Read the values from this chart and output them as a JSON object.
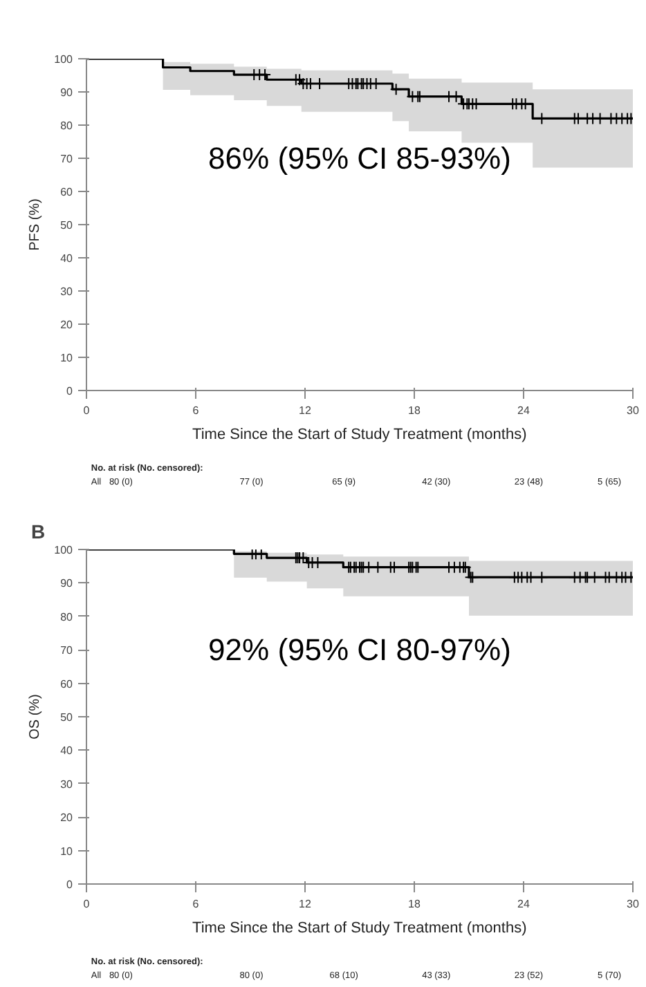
{
  "chart_data": [
    {
      "type": "step",
      "ylabel": "PFS (%)",
      "xlabel": "Time Since the Start of Study Treatment (months)",
      "xlim": [
        0,
        30
      ],
      "ylim": [
        0,
        100
      ],
      "xticks": [
        0,
        6,
        12,
        18,
        24,
        30
      ],
      "yticks": [
        0,
        10,
        20,
        30,
        40,
        50,
        60,
        70,
        80,
        90,
        100
      ],
      "series": [
        {
          "color": "#000000",
          "x": [
            0,
            4.2,
            5.7,
            8.1,
            9.9,
            11.8,
            16.8,
            17.7,
            20.6,
            24.5,
            30
          ],
          "values": [
            100,
            97.4,
            96.3,
            95.2,
            93.7,
            92.5,
            90.8,
            88.6,
            86.4,
            82,
            82
          ],
          "lower": [
            null,
            90.6,
            89,
            87.5,
            85.8,
            84,
            81.2,
            78.1,
            74.7,
            67.2,
            67.2
          ],
          "upper": [
            null,
            99,
            98.5,
            97.6,
            97,
            96.5,
            95.5,
            94,
            92.8,
            90.8,
            90.8
          ]
        },
        {
          "type": "scatter",
          "marker": "cross",
          "color": "#000000",
          "x": [
            9.2,
            9.5,
            9.8,
            11.5,
            11.7,
            11.9,
            12.1,
            12.3,
            12.8,
            14.4,
            14.6,
            14.8,
            14.9,
            15.1,
            15.2,
            15.4,
            15.6,
            15.9,
            17.0,
            17.9,
            18.2,
            18.3,
            19.9,
            20.3,
            20.7,
            20.9,
            21.0,
            21.2,
            21.4,
            23.4,
            23.6,
            23.9,
            24.1,
            25.0,
            26.8,
            27.0,
            27.5,
            27.8,
            28.2,
            28.8,
            29.1,
            29.4,
            29.7,
            29.9
          ],
          "values": [
            95.2,
            95.2,
            95.2,
            93.7,
            93.7,
            92.5,
            92.5,
            92.5,
            92.5,
            92.5,
            92.5,
            92.5,
            92.5,
            92.5,
            92.5,
            92.5,
            92.5,
            92.5,
            90.8,
            88.6,
            88.6,
            88.6,
            88.6,
            88.6,
            86.4,
            86.4,
            86.4,
            86.4,
            86.4,
            86.4,
            86.4,
            86.4,
            86.4,
            82,
            82,
            82,
            82,
            82,
            82,
            82,
            82,
            82,
            82,
            82
          ]
        }
      ],
      "annotations": [
        "86% (95% CI 85-93%)",
        "No. at risk (No. censored):",
        "All",
        "80 (0)",
        "77 (0)",
        "65 (9)",
        "42 (30)",
        "23 (48)",
        "5 (65)"
      ]
    },
    {
      "type": "step",
      "title": "B",
      "ylabel": "OS (%)",
      "xlabel": "Time Since the Start of Study Treatment (months)",
      "xlim": [
        0,
        30
      ],
      "ylim": [
        0,
        100
      ],
      "xticks": [
        0,
        6,
        12,
        18,
        24,
        30
      ],
      "yticks": [
        0,
        10,
        20,
        30,
        40,
        50,
        60,
        70,
        80,
        90,
        100
      ],
      "series": [
        {
          "color": "#000000",
          "x": [
            0,
            8.1,
            9.9,
            12.1,
            14.1,
            21.0,
            30
          ],
          "values": [
            100,
            98.7,
            97.5,
            96.1,
            94.7,
            91.7,
            91.7
          ],
          "lower": [
            null,
            91.6,
            90.4,
            88.4,
            86,
            80.2,
            80.2
          ],
          "upper": [
            null,
            99.5,
            99,
            98.5,
            97.9,
            96.6,
            96.6
          ]
        },
        {
          "type": "scatter",
          "marker": "cross",
          "color": "#000000",
          "x": [
            9.1,
            9.3,
            9.6,
            11.5,
            11.6,
            11.7,
            11.9,
            12.2,
            12.4,
            12.7,
            14.4,
            14.5,
            14.7,
            14.8,
            15.0,
            15.1,
            15.2,
            15.5,
            16.0,
            16.7,
            16.9,
            17.7,
            17.8,
            17.9,
            18.1,
            18.2,
            19.9,
            20.2,
            20.5,
            20.7,
            20.8,
            21.1,
            21.2,
            23.5,
            23.7,
            23.9,
            24.2,
            24.4,
            25.0,
            26.8,
            27.1,
            27.4,
            27.5,
            27.9,
            28.5,
            28.7,
            29.1,
            29.4,
            29.6,
            29.9
          ],
          "values": [
            98.7,
            98.7,
            98.7,
            97.5,
            97.5,
            97.5,
            97.5,
            96.1,
            96.1,
            96.1,
            94.7,
            94.7,
            94.7,
            94.7,
            94.7,
            94.7,
            94.7,
            94.7,
            94.7,
            94.7,
            94.7,
            94.7,
            94.7,
            94.7,
            94.7,
            94.7,
            94.7,
            94.7,
            94.7,
            94.7,
            94.7,
            91.7,
            91.7,
            91.7,
            91.7,
            91.7,
            91.7,
            91.7,
            91.7,
            91.7,
            91.7,
            91.7,
            91.7,
            91.7,
            91.7,
            91.7,
            91.7,
            91.7,
            91.7,
            91.7
          ]
        }
      ],
      "annotations": [
        "92% (95% CI 80-97%)",
        "No. at risk (No. censored):",
        "All",
        "80 (0)",
        "80 (0)",
        "68 (10)",
        "43 (33)",
        "23 (52)",
        "5 (70)"
      ]
    }
  ]
}
